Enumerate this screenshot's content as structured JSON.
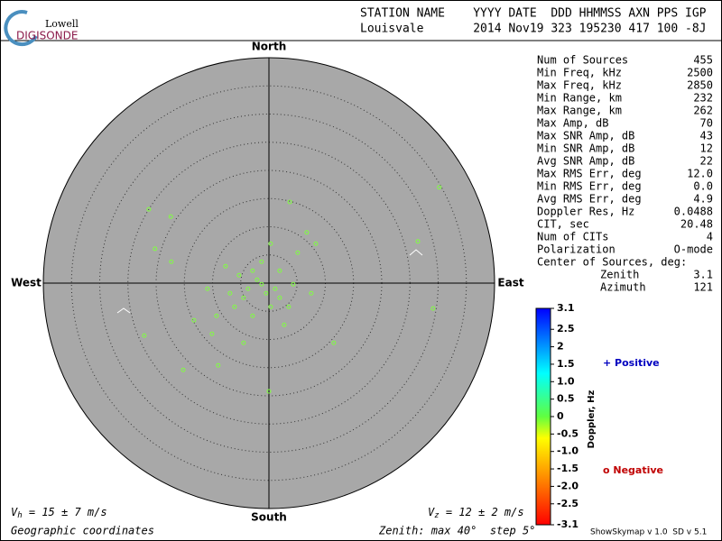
{
  "header": {
    "logo_top": "Lowell",
    "logo_bottom": "DIGISONDE",
    "columns": "STATION NAME    YYYY DATE  DDD HHMMSS AXN PPS IGP",
    "values": "Louisvale       2014 Nov19 323 195230 417 100 -8J"
  },
  "plot": {
    "north": "North",
    "south": "South",
    "east": "East",
    "west": "West",
    "zenith_max": 40,
    "zenith_step": 5,
    "point_color": "#80ff40",
    "points": [
      [
        30.2,
        17.0
      ],
      [
        26.4,
        7.4
      ],
      [
        29.1,
        -4.5
      ],
      [
        3.7,
        14.4
      ],
      [
        -21.3,
        13.1
      ],
      [
        -17.4,
        11.8
      ],
      [
        -20.2,
        6.1
      ],
      [
        -17.3,
        3.8
      ],
      [
        -22.1,
        -9.3
      ],
      [
        -15.2,
        -15.4
      ],
      [
        -9.0,
        -14.6
      ],
      [
        0,
        -19.2
      ],
      [
        11.5,
        -10.6
      ],
      [
        6.7,
        9.0
      ],
      [
        5.1,
        5.4
      ],
      [
        -7.7,
        3.0
      ],
      [
        -4.5,
        -2.6
      ],
      [
        -2.1,
        0.6
      ],
      [
        1.1,
        -1.0
      ],
      [
        1.9,
        2.2
      ],
      [
        -3.7,
        -1.0
      ],
      [
        -6.1,
        -4.2
      ],
      [
        3.5,
        -4.2
      ],
      [
        7.5,
        -1.8
      ],
      [
        -10.9,
        -1.0
      ],
      [
        -1.3,
        3.8
      ],
      [
        0.3,
        7.0
      ],
      [
        -2.9,
        -5.8
      ],
      [
        -9.3,
        -5.8
      ],
      [
        2.7,
        -7.4
      ],
      [
        -5.3,
        1.4
      ],
      [
        -0.5,
        -1.8
      ],
      [
        -6.9,
        -1.8
      ],
      [
        4.3,
        -0.2
      ],
      [
        -10.1,
        -9.0
      ],
      [
        8.3,
        7.0
      ],
      [
        -13.3,
        -6.6
      ],
      [
        -4.5,
        -10.6
      ],
      [
        0.3,
        -4.2
      ],
      [
        -2.9,
        2.2
      ],
      [
        -1.3,
        -0.2
      ],
      [
        1.9,
        -2.6
      ]
    ]
  },
  "stats": [
    [
      "Num of Sources",
      "455"
    ],
    [
      "Min Freq, kHz",
      "2500"
    ],
    [
      "Max Freq, kHz",
      "2850"
    ],
    [
      "Min Range, km",
      "232"
    ],
    [
      "Max Range, km",
      "262"
    ],
    [
      "Max Amp, dB",
      "70"
    ],
    [
      "Max SNR Amp, dB",
      "43"
    ],
    [
      "Min SNR Amp, dB",
      "12"
    ],
    [
      "Avg SNR Amp, dB",
      "22"
    ],
    [
      "Max RMS Err, deg",
      "12.0"
    ],
    [
      "Min RMS Err, deg",
      "0.0"
    ],
    [
      "Avg RMS Err, deg",
      "4.9"
    ],
    [
      "Doppler Res, Hz",
      "0.0488"
    ],
    [
      "CIT, sec",
      "20.48"
    ],
    [
      "Num of CITs",
      "4"
    ],
    [
      "Polarization",
      "O-mode"
    ]
  ],
  "center_label": "Center of Sources, deg:",
  "center_rows": [
    [
      "Zenith",
      "3.1"
    ],
    [
      "Azimuth",
      "121"
    ]
  ],
  "colorbar": {
    "title": "Doppler, Hz",
    "min": -3.1,
    "max": 3.1,
    "ticks": [
      3.1,
      2.5,
      2,
      1.5,
      {
        "value": 1,
        "label": "1.0"
      },
      0.5,
      0,
      -0.5,
      {
        "value": -1,
        "label": "-1.0"
      },
      -1.5,
      {
        "value": -2,
        "label": "-2.0"
      },
      -2.5,
      -3.1
    ]
  },
  "legend": {
    "positive": "+ Positive",
    "negative": "o Negative"
  },
  "footer": {
    "vh_v": "V",
    "vh_sub": "h",
    "vh_rest": " = 15 ± 7 m/s",
    "vz_v": "V",
    "vz_sub": "z",
    "vz_rest": " = 12 ± 2 m/s",
    "coords": "Geographic coordinates",
    "zenith": "Zenith: max 40°  step 5°",
    "version": "ShowSkymap v 1.0  SD v 5.1"
  }
}
